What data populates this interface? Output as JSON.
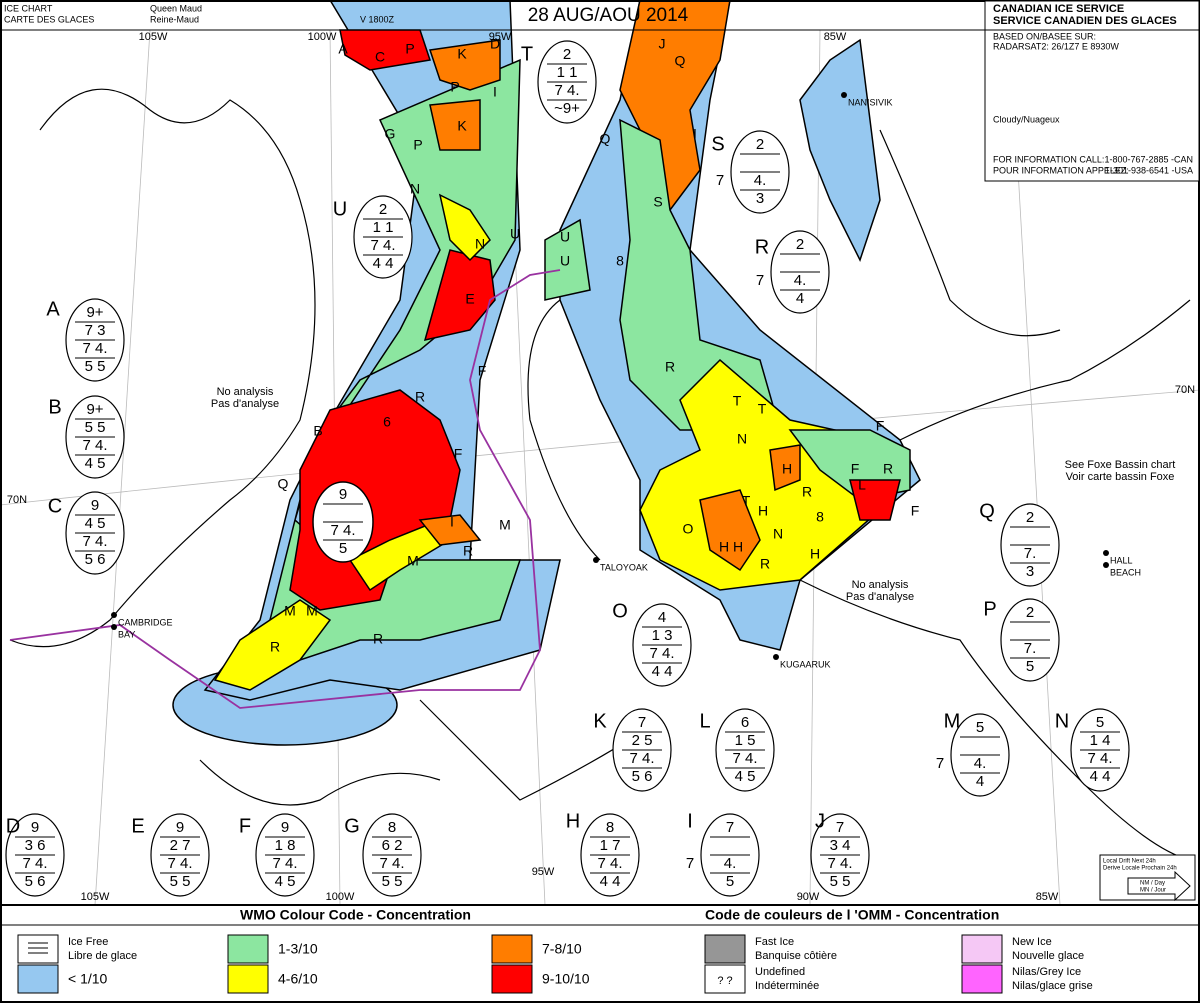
{
  "header": {
    "chart_name": [
      "ICE CHART",
      "CARTE DES GLACES"
    ],
    "region": [
      "Queen Maud",
      "Reine-Maud"
    ],
    "version": "V 1800Z",
    "date": "28 AUG/AOU 2014",
    "service": [
      "CANADIAN ICE SERVICE",
      "SERVICE CANADIEN DES GLACES"
    ],
    "based_on": [
      "BASED ON/BASEE SUR:",
      "RADARSAT2: 26/1Z7 E 8930W"
    ],
    "weather": "Cloudy/Nuageux",
    "info": [
      [
        "FOR INFORMATION CALL:",
        "1-800-767-2885 -CAN"
      ],
      [
        "POUR INFORMATION APPELEZ:",
        "1-301-938-6541 -USA"
      ]
    ]
  },
  "graticule_labels": [
    "105W",
    "100W",
    "95W",
    "85W",
    "70N",
    "70N",
    "105W",
    "100W",
    "95W",
    "90W",
    "85W"
  ],
  "places": [
    "NANISIVIK",
    "TALOYOAK",
    "KUGAARUK",
    "CAMBRIDGE",
    "BAY",
    "HALL",
    "BEACH"
  ],
  "notes": [
    [
      "No analysis",
      "Pas d'analyse"
    ],
    [
      "No analysis",
      "Pas d'analyse"
    ],
    [
      "See Foxe Bassin chart",
      "Voir carte bassin Foxe"
    ]
  ],
  "map_labels": [
    "A",
    "C",
    "P",
    "K",
    "D",
    "J",
    "Q",
    "I",
    "P",
    "K",
    "G",
    "P",
    "N",
    "N",
    "U",
    "E",
    "F",
    "R",
    "6",
    "B",
    "Q",
    "F",
    "I",
    "M",
    "M",
    "R",
    "M",
    "M",
    "R",
    "R",
    "S",
    "U",
    "8",
    "R",
    "T",
    "N",
    "H",
    "R",
    "F",
    "L",
    "R",
    "F",
    "T",
    "H",
    "O",
    "8",
    "N",
    "H",
    "H",
    "R",
    "F",
    "H",
    "I",
    "Q",
    "U",
    "T"
  ],
  "eggs": [
    {
      "letter": "T",
      "total": "2",
      "conc": "1 1",
      "stage": "7 4.",
      "form": "~9+"
    },
    {
      "letter": "S",
      "total": "2",
      "side": "7",
      "stage": "4.",
      "form": "3"
    },
    {
      "letter": "R",
      "total": "2",
      "side": "7",
      "stage": "4.",
      "form": "4"
    },
    {
      "letter": "U",
      "total": "2",
      "conc": "1 1",
      "stage": "7 4.",
      "form": "4 4"
    },
    {
      "letter": "A",
      "total": "9+",
      "conc": "7 3",
      "stage": "7 4.",
      "form": "5 5"
    },
    {
      "letter": "B",
      "total": "9+",
      "conc": "5 5",
      "stage": "7 4.",
      "form": "4 5"
    },
    {
      "letter": "C",
      "total": "9",
      "conc": "4 5",
      "stage": "7 4.",
      "form": "5 6"
    },
    {
      "total": "9",
      "stage": "7 4.",
      "form": "5"
    },
    {
      "letter": "Q",
      "total": "2",
      "stage": "7.",
      "form": "3"
    },
    {
      "letter": "P",
      "total": "2",
      "stage": "7.",
      "form": "5"
    },
    {
      "letter": "O",
      "total": "4",
      "conc": "1 3",
      "stage": "7 4.",
      "form": "4 4"
    },
    {
      "letter": "K",
      "total": "7",
      "conc": "2 5",
      "stage": "7 4.",
      "form": "5 6"
    },
    {
      "letter": "L",
      "total": "6",
      "conc": "1 5",
      "stage": "7 4.",
      "form": "4 5"
    },
    {
      "letter": "M",
      "total": "5",
      "side": "7",
      "stage": "4.",
      "form": "4"
    },
    {
      "letter": "N",
      "total": "5",
      "conc": "1 4",
      "stage": "7 4.",
      "form": "4 4"
    },
    {
      "letter": "D",
      "total": "9",
      "conc": "3 6",
      "stage": "7 4.",
      "form": "5 6"
    },
    {
      "letter": "E",
      "total": "9",
      "conc": "2 7",
      "stage": "7 4.",
      "form": "5 5"
    },
    {
      "letter": "F",
      "total": "9",
      "conc": "1 8",
      "stage": "7 4.",
      "form": "4 5"
    },
    {
      "letter": "G",
      "total": "8",
      "conc": "6 2",
      "stage": "7 4.",
      "form": "5 5"
    },
    {
      "letter": "H",
      "total": "8",
      "conc": "1 7",
      "stage": "7 4.",
      "form": "4 4"
    },
    {
      "letter": "I",
      "total": "7",
      "side": "7",
      "stage": "4.",
      "form": "5"
    },
    {
      "letter": "J",
      "total": "7",
      "conc": "3 4",
      "stage": "7 4.",
      "form": "5 5"
    }
  ],
  "drift": [
    "Local Drift Next 24h",
    "Derive Locale Prochain 24h",
    "NM / Day",
    "MN / Jour"
  ],
  "legend": {
    "title": "WMO Colour Code - Concentration",
    "title_fr": "Code de couleurs de l 'OMM - Concentration",
    "items": [
      {
        "text": [
          "Ice Free",
          "Libre de glace"
        ],
        "color": "#ffffff"
      },
      {
        "text": [
          "< 1/10"
        ],
        "color": "#96c8f0"
      },
      {
        "text": [
          "1-3/10"
        ],
        "color": "#8ce6a0"
      },
      {
        "text": [
          "4-6/10"
        ],
        "color": "#ffff00"
      },
      {
        "text": [
          "7-8/10"
        ],
        "color": "#ff7d00"
      },
      {
        "text": [
          "9-10/10"
        ],
        "color": "#ff0000"
      },
      {
        "text": [
          "Fast Ice",
          "Banquise côtière"
        ],
        "color": "#969696"
      },
      {
        "text": [
          "Undefined",
          "Indéterminée"
        ],
        "color": "#ffffff",
        "symbol": "?  ?"
      },
      {
        "text": [
          "New Ice",
          "Nouvelle glace"
        ],
        "color": "#f5c8f5"
      },
      {
        "text": [
          "Nilas/Grey Ice",
          "Nilas/glace grise"
        ],
        "color": "#ff64ff"
      }
    ]
  }
}
